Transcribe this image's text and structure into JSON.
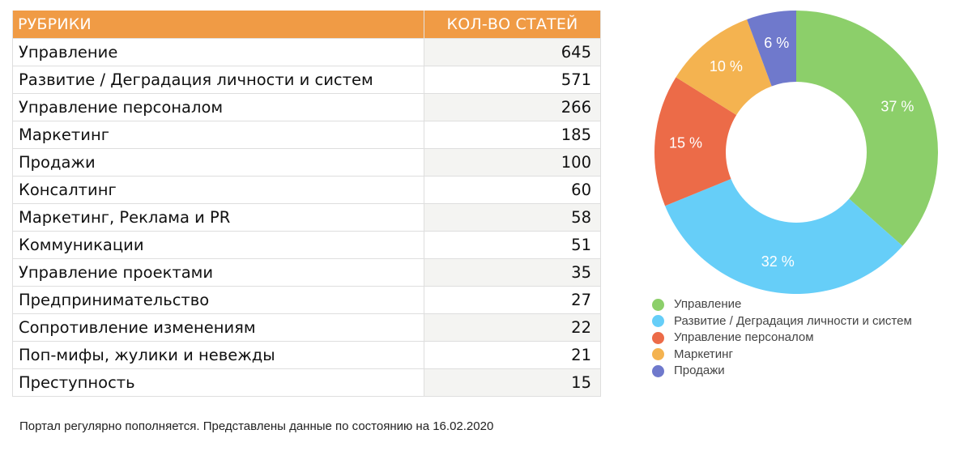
{
  "table": {
    "headers": {
      "rubric": "РУБРИКИ",
      "count": "КОЛ-ВО СТАТЕЙ"
    },
    "header_color": "#f09b45",
    "rows": [
      {
        "name": "Управление",
        "count": "645"
      },
      {
        "name": "Развитие / Деградация личности и систем",
        "count": "571"
      },
      {
        "name": "Управление персоналом",
        "count": "266"
      },
      {
        "name": "Маркетинг",
        "count": "185"
      },
      {
        "name": "Продажи",
        "count": "100"
      },
      {
        "name": "Консалтинг",
        "count": "60"
      },
      {
        "name": "Маркетинг, Реклама и PR",
        "count": "58"
      },
      {
        "name": "Коммуникации",
        "count": "51"
      },
      {
        "name": "Управление проектами",
        "count": "35"
      },
      {
        "name": "Предпринимательство",
        "count": "27"
      },
      {
        "name": "Сопротивление изменениям",
        "count": "22"
      },
      {
        "name": "Поп-мифы, жулики и невежды",
        "count": "21"
      },
      {
        "name": "Преступность",
        "count": "15"
      }
    ]
  },
  "footnote": "Портал регулярно пополняется. Представлены данные по состоянию на 16.02.2020",
  "chart_data": {
    "type": "pie",
    "variant": "donut",
    "title": "",
    "categories": [
      "Управление",
      "Развитие / Деградация личности и систем",
      "Управление персоналом",
      "Маркетинг",
      "Продажи"
    ],
    "values": [
      645,
      571,
      266,
      185,
      100
    ],
    "labels": [
      "37 %",
      "32 %",
      "15 %",
      "10 %",
      "6 %"
    ],
    "percentages": [
      37,
      32,
      15,
      10,
      6
    ],
    "colors": [
      "#8ccf6a",
      "#66cef8",
      "#ec6b48",
      "#f4b350",
      "#6f79cc"
    ],
    "legend_position": "bottom",
    "start_angle": "12 o'clock, clockwise"
  },
  "legend": {
    "items": [
      {
        "label": "Управление",
        "color": "#8ccf6a"
      },
      {
        "label": "Развитие / Деградация личности и систем",
        "color": "#66cef8"
      },
      {
        "label": "Управление персоналом",
        "color": "#ec6b48"
      },
      {
        "label": "Маркетинг",
        "color": "#f4b350"
      },
      {
        "label": "Продажи",
        "color": "#6f79cc"
      }
    ]
  }
}
